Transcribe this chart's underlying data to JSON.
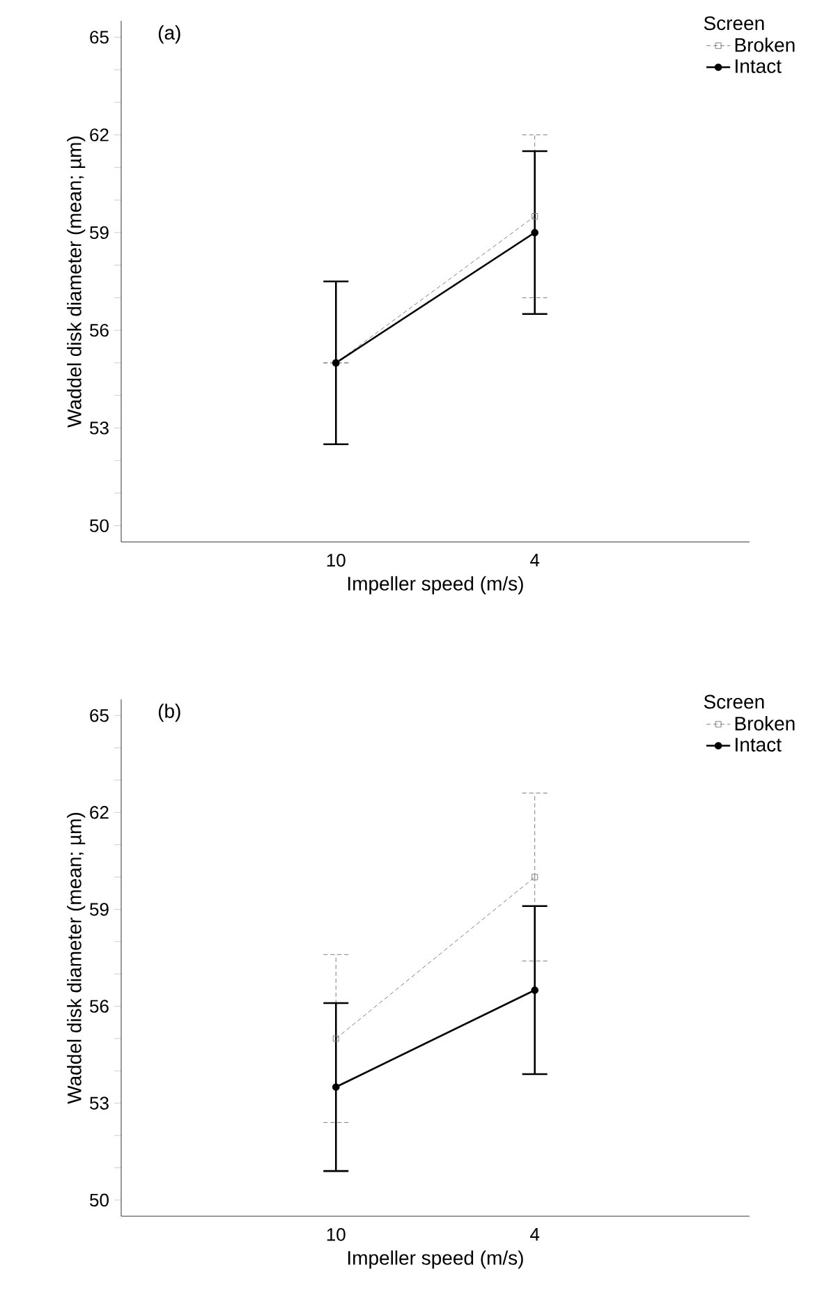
{
  "chart_data": [
    {
      "type": "line",
      "title": "(a)",
      "xlabel": "Impeller speed (m/s)",
      "ylabel": "Waddel disk diameter (mean; µm)",
      "legend_title": "Screen",
      "legend": "top right",
      "categories": [
        "10",
        "4"
      ],
      "ylim": [
        49.5,
        65.5
      ],
      "yticks": [
        50,
        {
          "value": 51,
          "label": null
        },
        {
          "value": 52,
          "label": null
        },
        53,
        {
          "value": 54,
          "label": null
        },
        {
          "value": 55,
          "label": null
        },
        56,
        {
          "value": 57,
          "label": null
        },
        {
          "value": 58,
          "label": null
        },
        59,
        {
          "value": 60,
          "label": null
        },
        {
          "value": 61,
          "label": null
        },
        62,
        {
          "value": 63,
          "label": null
        },
        {
          "value": 64,
          "label": null
        },
        65
      ],
      "series": [
        {
          "name": "Broken",
          "color": "#808080",
          "marker": "square",
          "line_style": "dashed",
          "values": [
            55,
            59.5
          ],
          "errors": [
            null,
            2.5
          ]
        },
        {
          "name": "Intact",
          "color": "#000000",
          "marker": "circle",
          "line_style": "solid",
          "values": [
            55,
            59
          ],
          "errors": [
            2.5,
            2.5
          ]
        }
      ]
    },
    {
      "type": "line",
      "title": "(b)",
      "xlabel": "Impeller speed (m/s)",
      "ylabel": "Waddel disk diameter (mean; µm)",
      "legend_title": "Screen",
      "legend": "top right",
      "categories": [
        "10",
        "4"
      ],
      "ylim": [
        49.5,
        65.5
      ],
      "yticks": [
        50,
        {
          "value": 51,
          "label": null
        },
        {
          "value": 52,
          "label": null
        },
        53,
        {
          "value": 54,
          "label": null
        },
        {
          "value": 55,
          "label": null
        },
        56,
        {
          "value": 57,
          "label": null
        },
        {
          "value": 58,
          "label": null
        },
        59,
        {
          "value": 60,
          "label": null
        },
        {
          "value": 61,
          "label": null
        },
        62,
        {
          "value": 63,
          "label": null
        },
        {
          "value": 64,
          "label": null
        },
        65
      ],
      "series": [
        {
          "name": "Broken",
          "color": "#808080",
          "marker": "square",
          "line_style": "dashed",
          "values": [
            55,
            60
          ],
          "errors": [
            2.6,
            2.6
          ]
        },
        {
          "name": "Intact",
          "color": "#000000",
          "marker": "circle",
          "line_style": "solid",
          "values": [
            53.5,
            56.5
          ],
          "errors": [
            2.6,
            2.6
          ]
        }
      ]
    }
  ]
}
